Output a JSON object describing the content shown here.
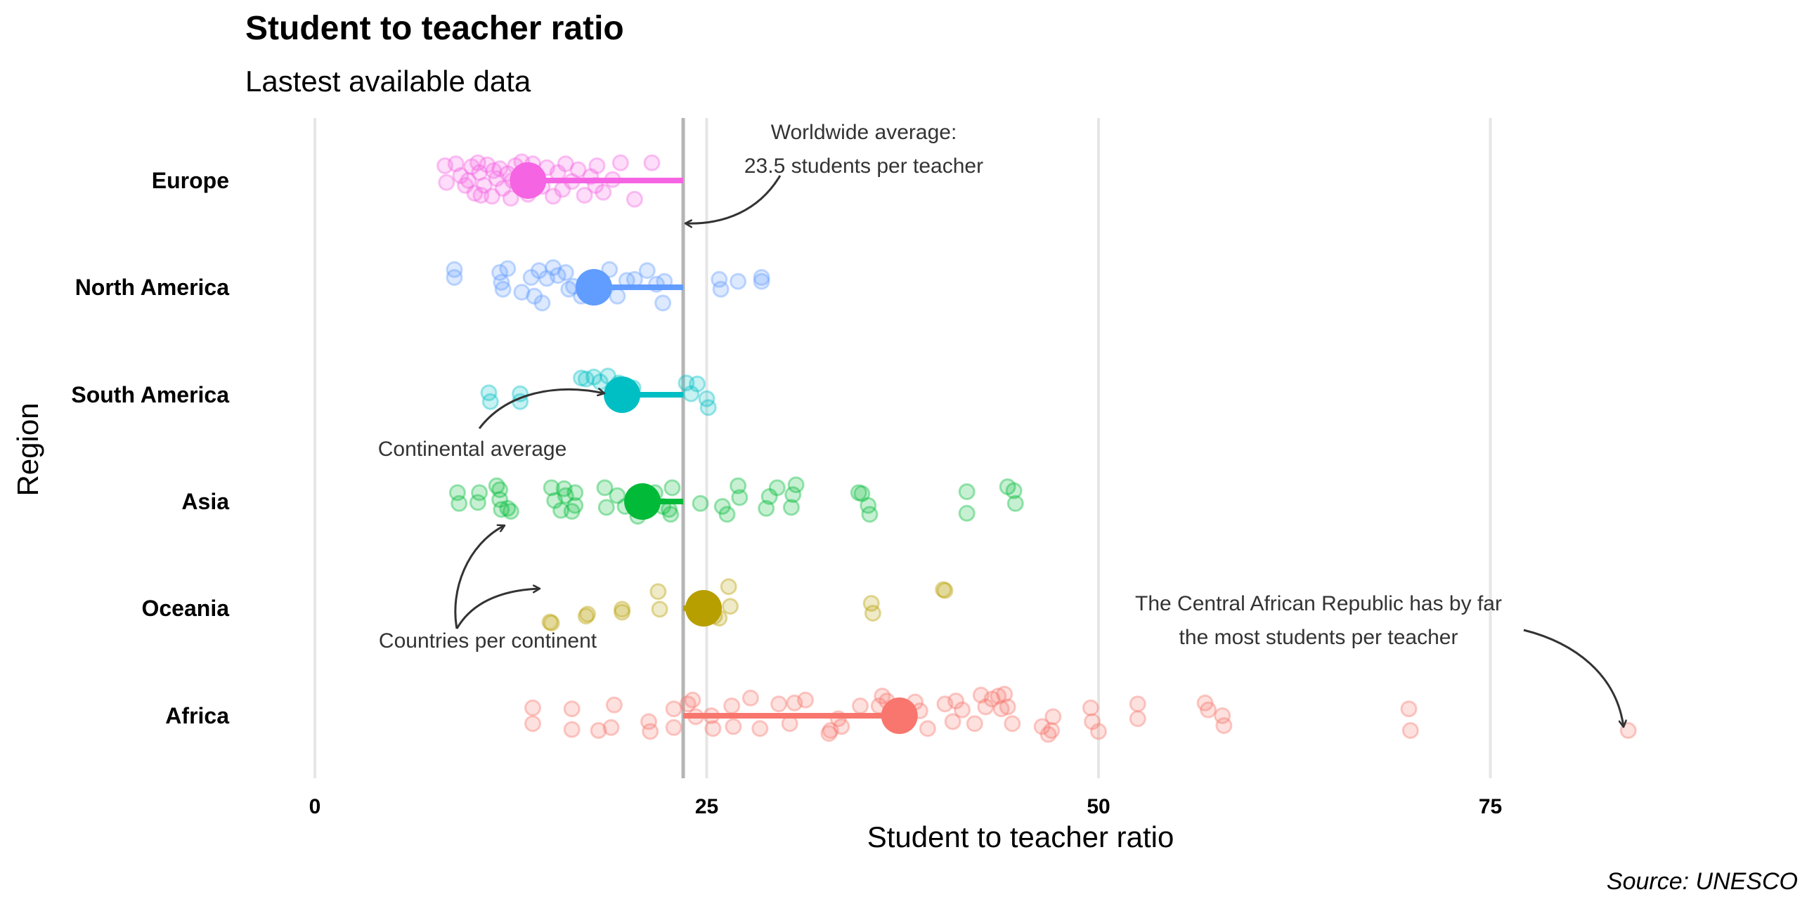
{
  "chart_data": {
    "type": "scatter",
    "title": "Student to teacher ratio",
    "subtitle": "Lastest available data",
    "xlabel": "Student to teacher ratio",
    "ylabel": "Region",
    "caption": "Source: UNESCO",
    "xlim": [
      0,
      95
    ],
    "x_ticks": [
      0,
      25,
      50,
      75
    ],
    "x_tick_labels": [
      "0",
      "25",
      "50",
      "75"
    ],
    "grid": "vertical",
    "categories": [
      "Europe",
      "North America",
      "South America",
      "Asia",
      "Oceania",
      "Africa"
    ],
    "world_average": 23.5,
    "series": [
      {
        "name": "Europe",
        "color": "#F564E3",
        "average": 13.6,
        "points": [
          [
            8.3,
            0.15
          ],
          [
            8.4,
            -0.02
          ],
          [
            9.0,
            0.17
          ],
          [
            9.3,
            0.05
          ],
          [
            9.6,
            -0.05
          ],
          [
            10.0,
            0.14
          ],
          [
            10.2,
            -0.13
          ],
          [
            10.5,
            0.08
          ],
          [
            10.8,
            -0.05
          ],
          [
            11.0,
            0.16
          ],
          [
            11.3,
            -0.16
          ],
          [
            11.6,
            0.02
          ],
          [
            11.8,
            0.12
          ],
          [
            12.0,
            -0.08
          ],
          [
            12.3,
            0.07
          ],
          [
            12.5,
            -0.18
          ],
          [
            12.8,
            0.15
          ],
          [
            13.1,
            -0.03
          ],
          [
            13.4,
            0.1
          ],
          [
            13.6,
            -0.14
          ],
          [
            13.9,
            0.17
          ],
          [
            14.2,
            0.04
          ],
          [
            14.5,
            -0.06
          ],
          [
            14.8,
            0.13
          ],
          [
            15.2,
            -0.16
          ],
          [
            15.5,
            0.08
          ],
          [
            16.0,
            0.17
          ],
          [
            16.4,
            -0.01
          ],
          [
            16.8,
            0.11
          ],
          [
            17.2,
            -0.15
          ],
          [
            17.6,
            0.04
          ],
          [
            18.0,
            0.15
          ],
          [
            18.4,
            -0.12
          ],
          [
            19.0,
            0.01
          ],
          [
            19.5,
            0.18
          ],
          [
            20.4,
            -0.19
          ],
          [
            21.5,
            0.18
          ],
          [
            11.4,
            0.1
          ],
          [
            10.6,
            -0.15
          ],
          [
            12.6,
            0.0
          ],
          [
            9.8,
            0.0
          ],
          [
            15.8,
            -0.09
          ],
          [
            17.9,
            -0.05
          ],
          [
            13.2,
            0.19
          ],
          [
            10.4,
            0.18
          ]
        ]
      },
      {
        "name": "North America",
        "color": "#619CFF",
        "average": 17.8,
        "points": [
          [
            8.9,
            0.18
          ],
          [
            8.9,
            0.1
          ],
          [
            11.8,
            0.15
          ],
          [
            11.9,
            0.05
          ],
          [
            12.0,
            -0.02
          ],
          [
            12.3,
            0.19
          ],
          [
            13.2,
            -0.05
          ],
          [
            13.8,
            0.1
          ],
          [
            14.0,
            -0.09
          ],
          [
            14.3,
            0.17
          ],
          [
            14.5,
            -0.16
          ],
          [
            14.8,
            0.09
          ],
          [
            15.2,
            0.2
          ],
          [
            15.5,
            0.12
          ],
          [
            16.0,
            0.15
          ],
          [
            16.2,
            -0.02
          ],
          [
            16.5,
            0.01
          ],
          [
            17.0,
            -0.09
          ],
          [
            18.3,
            0.04
          ],
          [
            18.8,
            0.18
          ],
          [
            19.3,
            -0.09
          ],
          [
            19.9,
            0.07
          ],
          [
            20.4,
            0.08
          ],
          [
            21.2,
            0.17
          ],
          [
            21.8,
            0.03
          ],
          [
            22.3,
            0.06
          ],
          [
            22.2,
            -0.16
          ],
          [
            25.8,
            0.08
          ],
          [
            25.9,
            -0.02
          ],
          [
            27.0,
            0.06
          ],
          [
            28.5,
            0.1
          ],
          [
            28.5,
            0.06
          ]
        ]
      },
      {
        "name": "South America",
        "color": "#00BFC4",
        "average": 19.6,
        "points": [
          [
            11.1,
            0.02
          ],
          [
            11.2,
            -0.07
          ],
          [
            13.1,
            0.01
          ],
          [
            13.1,
            -0.07
          ],
          [
            17.0,
            0.17
          ],
          [
            17.3,
            0.16
          ],
          [
            17.8,
            0.18
          ],
          [
            18.2,
            0.13
          ],
          [
            18.7,
            0.19
          ],
          [
            19.4,
            0.12
          ],
          [
            20.3,
            0.07
          ],
          [
            23.7,
            0.12
          ],
          [
            24.0,
            0.01
          ],
          [
            24.4,
            0.11
          ],
          [
            25.0,
            -0.04
          ],
          [
            25.1,
            -0.13
          ]
        ]
      },
      {
        "name": "Asia",
        "color": "#00BA38",
        "average": 20.9,
        "points": [
          [
            9.1,
            0.09
          ],
          [
            9.2,
            -0.02
          ],
          [
            10.4,
            -0.01
          ],
          [
            10.5,
            0.09
          ],
          [
            11.6,
            0.16
          ],
          [
            11.8,
            0.12
          ],
          [
            11.8,
            0.02
          ],
          [
            11.9,
            -0.08
          ],
          [
            12.3,
            -0.07
          ],
          [
            12.5,
            -0.1
          ],
          [
            15.1,
            0.14
          ],
          [
            15.3,
            0.01
          ],
          [
            15.7,
            -0.09
          ],
          [
            15.9,
            0.13
          ],
          [
            16.0,
            0.06
          ],
          [
            16.4,
            -0.1
          ],
          [
            16.6,
            0.09
          ],
          [
            16.6,
            -0.04
          ],
          [
            18.5,
            0.14
          ],
          [
            18.6,
            -0.06
          ],
          [
            19.3,
            0.06
          ],
          [
            19.8,
            -0.05
          ],
          [
            20.6,
            -0.15
          ],
          [
            21.7,
            0.09
          ],
          [
            22.2,
            -0.05
          ],
          [
            22.6,
            -0.08
          ],
          [
            22.7,
            -0.13
          ],
          [
            22.8,
            0.14
          ],
          [
            24.6,
            -0.02
          ],
          [
            26.0,
            -0.05
          ],
          [
            26.3,
            -0.13
          ],
          [
            27.0,
            0.16
          ],
          [
            27.1,
            0.04
          ],
          [
            28.8,
            -0.07
          ],
          [
            29.0,
            0.05
          ],
          [
            29.5,
            0.14
          ],
          [
            30.4,
            -0.06
          ],
          [
            30.5,
            0.07
          ],
          [
            30.7,
            0.17
          ],
          [
            34.7,
            0.09
          ],
          [
            34.9,
            0.08
          ],
          [
            35.3,
            -0.04
          ],
          [
            35.4,
            -0.13
          ],
          [
            41.6,
            0.1
          ],
          [
            41.6,
            -0.12
          ],
          [
            44.2,
            0.15
          ],
          [
            44.6,
            0.11
          ],
          [
            44.7,
            -0.02
          ]
        ]
      },
      {
        "name": "Oceania",
        "color": "#B79F00",
        "average": 24.8,
        "points": [
          [
            15.0,
            -0.14
          ],
          [
            15.1,
            -0.15
          ],
          [
            17.3,
            -0.08
          ],
          [
            17.4,
            -0.06
          ],
          [
            19.6,
            -0.01
          ],
          [
            19.6,
            -0.04
          ],
          [
            21.9,
            0.17
          ],
          [
            22.0,
            -0.01
          ],
          [
            25.0,
            -0.02
          ],
          [
            25.5,
            -0.08
          ],
          [
            25.8,
            -0.1
          ],
          [
            26.4,
            0.22
          ],
          [
            26.5,
            0.02
          ],
          [
            35.5,
            0.05
          ],
          [
            35.6,
            -0.05
          ],
          [
            40.1,
            0.19
          ],
          [
            40.2,
            0.18
          ]
        ]
      },
      {
        "name": "Africa",
        "color": "#F8766D",
        "average": 37.3,
        "points": [
          [
            13.9,
            0.08
          ],
          [
            13.9,
            -0.08
          ],
          [
            16.4,
            0.07
          ],
          [
            16.4,
            -0.14
          ],
          [
            18.1,
            -0.15
          ],
          [
            18.9,
            -0.12
          ],
          [
            19.1,
            0.11
          ],
          [
            21.3,
            -0.06
          ],
          [
            21.4,
            -0.16
          ],
          [
            22.9,
            0.07
          ],
          [
            22.9,
            -0.12
          ],
          [
            23.8,
            0.12
          ],
          [
            24.1,
            0.16
          ],
          [
            24.3,
            -0.01
          ],
          [
            25.3,
            0.0
          ],
          [
            25.4,
            -0.13
          ],
          [
            26.6,
            0.1
          ],
          [
            26.7,
            -0.11
          ],
          [
            27.8,
            0.18
          ],
          [
            28.4,
            -0.13
          ],
          [
            29.6,
            0.12
          ],
          [
            30.3,
            -0.08
          ],
          [
            30.6,
            0.13
          ],
          [
            31.3,
            0.16
          ],
          [
            32.8,
            -0.18
          ],
          [
            32.9,
            -0.15
          ],
          [
            33.4,
            -0.03
          ],
          [
            33.6,
            -0.11
          ],
          [
            34.8,
            0.1
          ],
          [
            36.0,
            0.1
          ],
          [
            36.2,
            0.2
          ],
          [
            36.5,
            0.15
          ],
          [
            37.0,
            0.09
          ],
          [
            37.3,
            -0.08
          ],
          [
            37.5,
            0.0
          ],
          [
            38.3,
            0.14
          ],
          [
            38.6,
            0.05
          ],
          [
            39.1,
            -0.13
          ],
          [
            40.2,
            0.12
          ],
          [
            40.7,
            -0.06
          ],
          [
            40.9,
            0.15
          ],
          [
            41.3,
            0.06
          ],
          [
            42.1,
            -0.08
          ],
          [
            42.5,
            0.21
          ],
          [
            42.8,
            0.09
          ],
          [
            43.2,
            0.17
          ],
          [
            43.8,
            0.07
          ],
          [
            43.6,
            0.2
          ],
          [
            44.0,
            0.22
          ],
          [
            44.2,
            0.09
          ],
          [
            44.5,
            -0.08
          ],
          [
            46.4,
            -0.11
          ],
          [
            46.8,
            -0.19
          ],
          [
            47.0,
            -0.15
          ],
          [
            47.1,
            -0.01
          ],
          [
            49.5,
            0.08
          ],
          [
            49.6,
            -0.06
          ],
          [
            50.0,
            -0.16
          ],
          [
            52.5,
            0.12
          ],
          [
            52.5,
            -0.03
          ],
          [
            56.8,
            0.13
          ],
          [
            57.0,
            0.06
          ],
          [
            57.9,
            0.0
          ],
          [
            58.0,
            -0.1
          ],
          [
            69.8,
            0.07
          ],
          [
            69.9,
            -0.15
          ],
          [
            83.8,
            -0.15
          ]
        ]
      }
    ],
    "annotations": [
      {
        "text": [
          "Worldwide average:",
          "23.5 students per teacher"
        ]
      },
      {
        "text": [
          "Continental average"
        ]
      },
      {
        "text": [
          "Countries per continent"
        ]
      },
      {
        "text": [
          "The Central African Republic has by far",
          "the most students per teacher"
        ]
      }
    ]
  }
}
